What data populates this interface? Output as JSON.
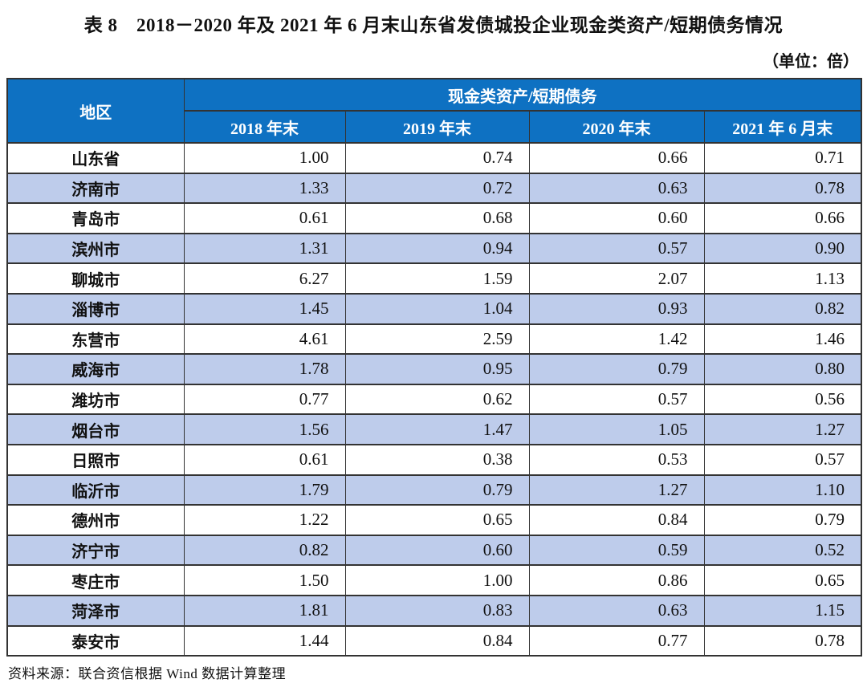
{
  "title": "表 8　2018－2020 年及 2021 年 6 月末山东省发债城投企业现金类资产/短期债务情况",
  "unit": "（单位：倍）",
  "source": "资料来源：联合资信根据 Wind 数据计算整理",
  "colors": {
    "header_bg": "#0e71c2",
    "row_alt": "#becceb",
    "border": "#333333"
  },
  "table": {
    "region_header": "地区",
    "group_header": "现金类资产/短期债务",
    "col_headers": [
      "2018 年末",
      "2019 年末",
      "2020 年末",
      "2021 年 6 月末"
    ],
    "rows": [
      {
        "region": "山东省",
        "values": [
          "1.00",
          "0.74",
          "0.66",
          "0.71"
        ]
      },
      {
        "region": "济南市",
        "values": [
          "1.33",
          "0.72",
          "0.63",
          "0.78"
        ]
      },
      {
        "region": "青岛市",
        "values": [
          "0.61",
          "0.68",
          "0.60",
          "0.66"
        ]
      },
      {
        "region": "滨州市",
        "values": [
          "1.31",
          "0.94",
          "0.57",
          "0.90"
        ]
      },
      {
        "region": "聊城市",
        "values": [
          "6.27",
          "1.59",
          "2.07",
          "1.13"
        ]
      },
      {
        "region": "淄博市",
        "values": [
          "1.45",
          "1.04",
          "0.93",
          "0.82"
        ]
      },
      {
        "region": "东营市",
        "values": [
          "4.61",
          "2.59",
          "1.42",
          "1.46"
        ]
      },
      {
        "region": "威海市",
        "values": [
          "1.78",
          "0.95",
          "0.79",
          "0.80"
        ]
      },
      {
        "region": "潍坊市",
        "values": [
          "0.77",
          "0.62",
          "0.57",
          "0.56"
        ]
      },
      {
        "region": "烟台市",
        "values": [
          "1.56",
          "1.47",
          "1.05",
          "1.27"
        ]
      },
      {
        "region": "日照市",
        "values": [
          "0.61",
          "0.38",
          "0.53",
          "0.57"
        ]
      },
      {
        "region": "临沂市",
        "values": [
          "1.79",
          "0.79",
          "1.27",
          "1.10"
        ]
      },
      {
        "region": "德州市",
        "values": [
          "1.22",
          "0.65",
          "0.84",
          "0.79"
        ]
      },
      {
        "region": "济宁市",
        "values": [
          "0.82",
          "0.60",
          "0.59",
          "0.52"
        ]
      },
      {
        "region": "枣庄市",
        "values": [
          "1.50",
          "1.00",
          "0.86",
          "0.65"
        ]
      },
      {
        "region": "菏泽市",
        "values": [
          "1.81",
          "0.83",
          "0.63",
          "1.15"
        ]
      },
      {
        "region": "泰安市",
        "values": [
          "1.44",
          "0.84",
          "0.77",
          "0.78"
        ]
      }
    ]
  },
  "chart_data": {
    "type": "table",
    "title": "表 8　2018－2020 年及 2021 年 6 月末山东省发债城投企业现金类资产/短期债务情况",
    "unit": "倍",
    "categories": [
      "山东省",
      "济南市",
      "青岛市",
      "滨州市",
      "聊城市",
      "淄博市",
      "东营市",
      "威海市",
      "潍坊市",
      "烟台市",
      "日照市",
      "临沂市",
      "德州市",
      "济宁市",
      "枣庄市",
      "菏泽市",
      "泰安市"
    ],
    "series": [
      {
        "name": "2018 年末",
        "values": [
          1.0,
          1.33,
          0.61,
          1.31,
          6.27,
          1.45,
          4.61,
          1.78,
          0.77,
          1.56,
          0.61,
          1.79,
          1.22,
          0.82,
          1.5,
          1.81,
          1.44
        ]
      },
      {
        "name": "2019 年末",
        "values": [
          0.74,
          0.72,
          0.68,
          0.94,
          1.59,
          1.04,
          2.59,
          0.95,
          0.62,
          1.47,
          0.38,
          0.79,
          0.65,
          0.6,
          1.0,
          0.83,
          0.84
        ]
      },
      {
        "name": "2020 年末",
        "values": [
          0.66,
          0.63,
          0.6,
          0.57,
          2.07,
          0.93,
          1.42,
          0.79,
          0.57,
          1.05,
          0.53,
          1.27,
          0.84,
          0.59,
          0.86,
          0.63,
          0.77
        ]
      },
      {
        "name": "2021 年 6 月末",
        "values": [
          0.71,
          0.78,
          0.66,
          0.9,
          1.13,
          0.82,
          1.46,
          0.8,
          0.56,
          1.27,
          0.57,
          1.1,
          0.79,
          0.52,
          0.65,
          1.15,
          0.78
        ]
      }
    ]
  }
}
